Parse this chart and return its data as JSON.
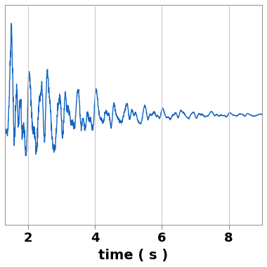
{
  "xlim": [
    1.3,
    9.0
  ],
  "ylim": [
    -3.0,
    3.0
  ],
  "xticks": [
    2,
    4,
    6,
    8
  ],
  "xlabel": "time ( s )",
  "line_color": "#1565c0",
  "line_width": 1.0,
  "background_color": "#ffffff",
  "grid_color": "#c8c8c8",
  "xlabel_fontsize": 14,
  "xlabel_fontweight": "bold",
  "tick_fontsize": 13,
  "tick_fontweight": "bold"
}
